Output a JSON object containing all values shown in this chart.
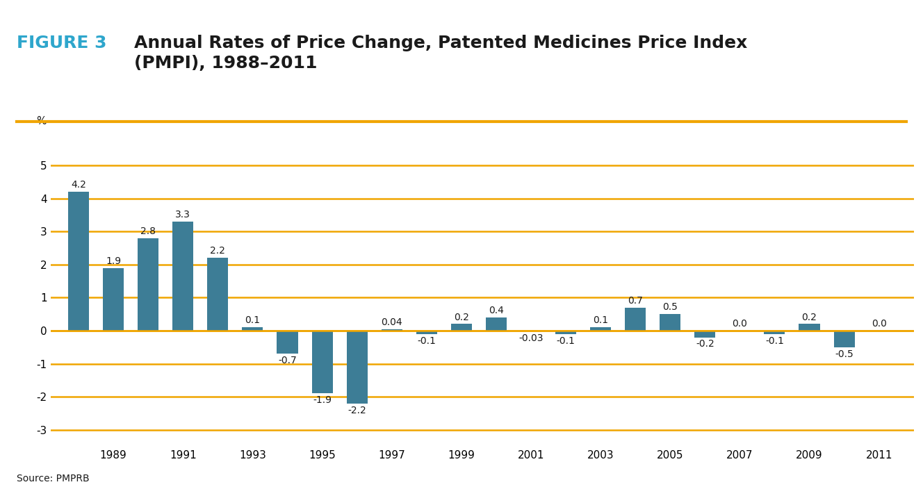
{
  "years": [
    1988,
    1989,
    1990,
    1991,
    1992,
    1993,
    1994,
    1995,
    1996,
    1997,
    1998,
    1999,
    2000,
    2001,
    2002,
    2003,
    2004,
    2005,
    2006,
    2007,
    2008,
    2009,
    2010,
    2011
  ],
  "values": [
    4.2,
    1.9,
    2.8,
    3.3,
    2.2,
    0.1,
    -0.7,
    -1.9,
    -2.2,
    0.04,
    -0.1,
    0.2,
    0.4,
    -0.03,
    -0.1,
    0.1,
    0.7,
    0.5,
    -0.2,
    0.0,
    -0.1,
    0.2,
    -0.5,
    0.0
  ],
  "labels": [
    "4.2",
    "1.9",
    "2.8",
    "3.3",
    "2.2",
    "0.1",
    "-0.7",
    "-1.9",
    "-2.2",
    "0.04",
    "-0.1",
    "0.2",
    "0.4",
    "-0.03",
    "-0.1",
    "0.1",
    "0.7",
    "0.5",
    "-0.2",
    "0.0",
    "-0.1",
    "0.2",
    "-0.5",
    "0.0"
  ],
  "bar_color": "#3d7d96",
  "title_prefix": "FIGURE 3",
  "title_prefix_color": "#2ea6cc",
  "title_main": "Annual Rates of Price Change, Patented Medicines Price Index\n(PMPI), 1988–2011",
  "title_main_color": "#1a1a1a",
  "ylabel_text": "%",
  "ylim": [
    -3.5,
    5.8
  ],
  "yticks": [
    -3,
    -2,
    -1,
    0,
    1,
    2,
    3,
    4,
    5
  ],
  "grid_color": "#f0a500",
  "separator_color": "#f0a500",
  "source_text": "Source: PMPRB",
  "background_color": "#ffffff",
  "bar_width": 0.6,
  "title_fontsize": 18,
  "tick_fontsize": 11,
  "label_fontsize": 10
}
